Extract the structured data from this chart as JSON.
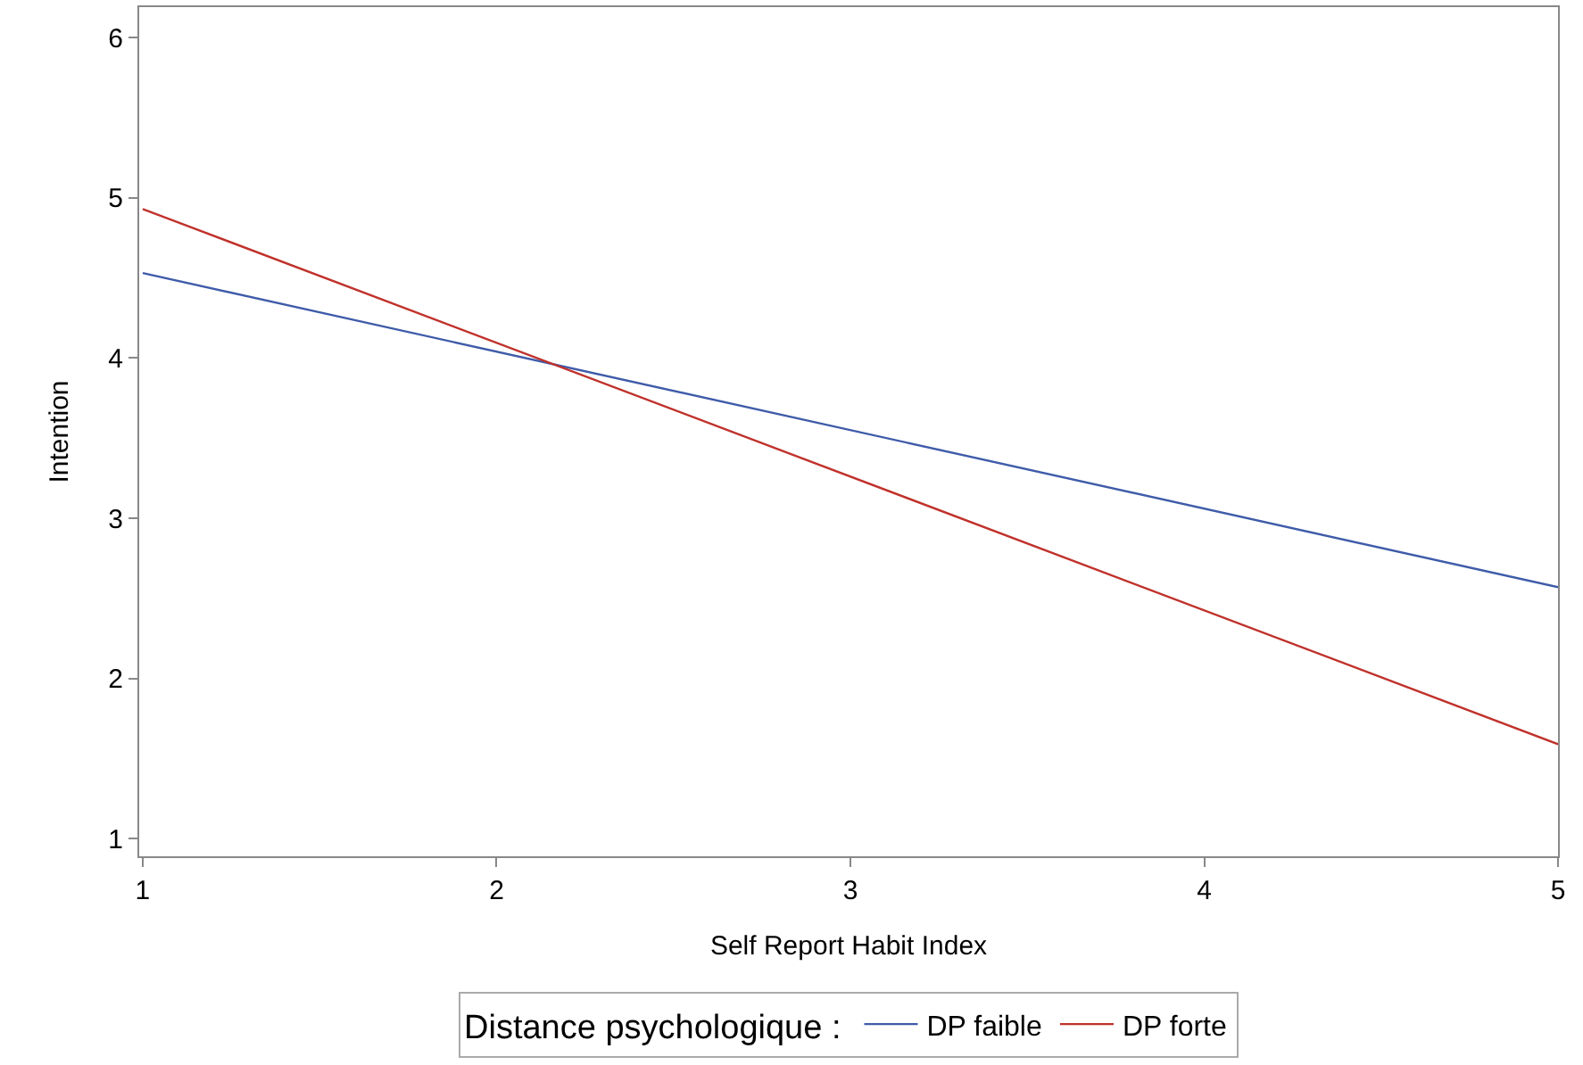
{
  "chart_data": {
    "type": "line",
    "xlabel": "Self Report Habit Index",
    "ylabel": "Intention",
    "legend_title": "Distance psychologique :",
    "legend": "bottom",
    "grid": false,
    "marker": "none",
    "line_style": "solid",
    "xlim": [
      0.99,
      5.0
    ],
    "xticks": [
      1,
      2,
      3,
      4,
      5
    ],
    "ylim": [
      0.89,
      6.19
    ],
    "yticks": [
      1,
      2,
      3,
      4,
      5,
      6
    ],
    "x": [
      1,
      5
    ],
    "series": [
      {
        "name": "DP faible",
        "color": "#3f5ba9",
        "values": [
          4.53,
          2.57
        ]
      },
      {
        "name": "DP forte",
        "color": "#c0312b",
        "values": [
          4.93,
          1.59
        ]
      }
    ]
  }
}
